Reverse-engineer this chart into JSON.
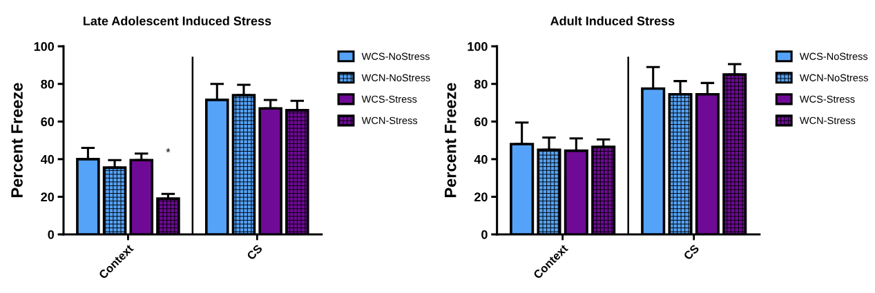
{
  "chart_data": [
    {
      "type": "bar",
      "title": "Late Adolescent Induced Stress",
      "ylabel": "Percent Freeze",
      "categories": [
        "Context",
        "CS"
      ],
      "series": [
        {
          "name": "WCS-NoStress",
          "color": "#55a3f8",
          "values": [
            40,
            71.5
          ],
          "errors": [
            [
              40,
              46
            ],
            [
              71.5,
              80
            ]
          ]
        },
        {
          "name": "WCN-NoStress",
          "color": "#55a3f8",
          "values": [
            35.5,
            74
          ],
          "errors": [
            [
              35.5,
              39.5
            ],
            [
              74,
              79.5
            ]
          ]
        },
        {
          "name": "WCS-Stress",
          "color": "#6f0a96",
          "values": [
            39.5,
            67
          ],
          "errors": [
            [
              39.5,
              43
            ],
            [
              67,
              71.5
            ]
          ]
        },
        {
          "name": "WCN-Stress",
          "color": "#6f0a96",
          "values": [
            19,
            66
          ],
          "errors": [
            [
              19,
              21.5
            ],
            [
              66,
              71
            ]
          ]
        }
      ],
      "ylim": [
        0,
        100
      ],
      "yticks": [
        0,
        20,
        40,
        60,
        80,
        100
      ],
      "grid": false,
      "legend": "right",
      "annotations": [
        "*"
      ]
    },
    {
      "type": "bar",
      "title": "Adult Induced Stress",
      "ylabel": "Percent Freeze",
      "categories": [
        "Context",
        "CS"
      ],
      "series": [
        {
          "name": "WCS-NoStress",
          "color": "#55a3f8",
          "values": [
            48,
            77.5
          ],
          "errors": [
            [
              48,
              59.5
            ],
            [
              77.5,
              89
            ]
          ]
        },
        {
          "name": "WCN-NoStress",
          "color": "#55a3f8",
          "values": [
            45,
            74.5
          ],
          "errors": [
            [
              45,
              51.5
            ],
            [
              74.5,
              81.5
            ]
          ]
        },
        {
          "name": "WCS-Stress",
          "color": "#6f0a96",
          "values": [
            44.5,
            74.5
          ],
          "errors": [
            [
              44.5,
              51
            ],
            [
              74.5,
              80.5
            ]
          ]
        },
        {
          "name": "WCN-Stress",
          "color": "#6f0a96",
          "values": [
            46.5,
            85
          ],
          "errors": [
            [
              46.5,
              50.5
            ],
            [
              85,
              90.5
            ]
          ]
        }
      ],
      "ylim": [
        0,
        100
      ],
      "yticks": [
        0,
        20,
        40,
        60,
        80,
        100
      ],
      "grid": false,
      "legend": "right"
    }
  ]
}
